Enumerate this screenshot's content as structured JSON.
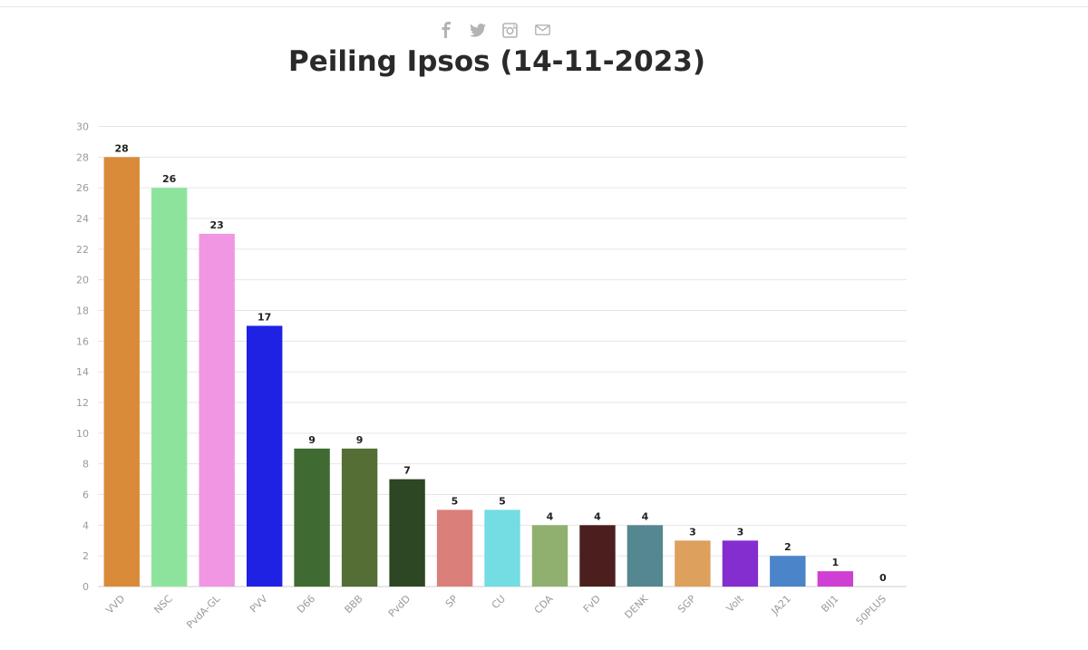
{
  "share": [
    {
      "name": "facebook-icon"
    },
    {
      "name": "twitter-icon"
    },
    {
      "name": "instagram-icon"
    },
    {
      "name": "mail-icon"
    }
  ],
  "chart_data": {
    "type": "bar",
    "title": "Peiling Ipsos (14-11-2023)",
    "xlabel": "",
    "ylabel": "",
    "ylim": [
      0,
      30
    ],
    "yticks": [
      0,
      2,
      4,
      6,
      8,
      10,
      12,
      14,
      16,
      18,
      20,
      22,
      24,
      26,
      28,
      30
    ],
    "grid": true,
    "legend": "none",
    "categories": [
      "VVD",
      "NSC",
      "PvdA-GL",
      "PVV",
      "D66",
      "BBB",
      "PvdD",
      "SP",
      "CU",
      "CDA",
      "FvD",
      "DENK",
      "SGP",
      "Volt",
      "JA21",
      "BIJ1",
      "50PLUS"
    ],
    "values": [
      28,
      26,
      23,
      17,
      9,
      9,
      7,
      5,
      5,
      4,
      4,
      4,
      3,
      3,
      2,
      1,
      0
    ],
    "colors": [
      "#d98b3a",
      "#8ee39c",
      "#f096e2",
      "#1f22e3",
      "#3f6b33",
      "#546e35",
      "#2d4623",
      "#db7f7a",
      "#73dde3",
      "#8fb06f",
      "#4a1f1e",
      "#558790",
      "#dda05d",
      "#842ed0",
      "#4b84c9",
      "#d03fd4",
      "#cccccc"
    ]
  }
}
